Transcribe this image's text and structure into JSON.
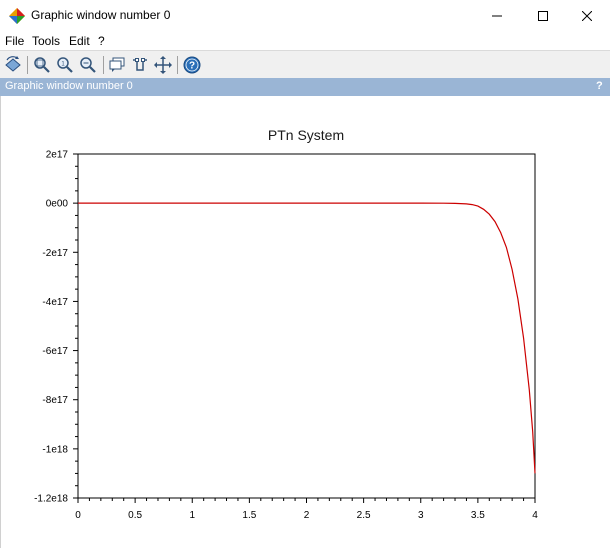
{
  "window": {
    "title": "Graphic window number 0"
  },
  "menu": {
    "items": [
      "File",
      "Tools",
      "Edit",
      "?"
    ]
  },
  "toolbar": {
    "buttons": [
      "rotate-icon",
      "zoom-icon",
      "zoom-100-icon",
      "zoom-area-icon",
      "datatip-icon",
      "datatip-edit-icon",
      "pan-icon",
      "help-icon"
    ]
  },
  "infobar": {
    "label": "Graphic window number 0",
    "help": "?"
  },
  "colors": {
    "curve": "#cc0000",
    "infobar": "#9ab5d5"
  },
  "chart_data": {
    "type": "line",
    "title": "PTn System",
    "xlabel": "",
    "ylabel": "",
    "xlim": [
      0,
      4
    ],
    "ylim": [
      -1.2e+18,
      2e+17
    ],
    "x_ticks": [
      0,
      0.5,
      1,
      1.5,
      2,
      2.5,
      3,
      3.5,
      4
    ],
    "x_tick_labels": [
      "0",
      "0.5",
      "1",
      "1.5",
      "2",
      "2.5",
      "3",
      "3.5",
      "4"
    ],
    "y_ticks": [
      2e+17,
      0,
      -2e+17,
      -4e+17,
      -6e+17,
      -8e+17,
      -1e+18,
      -1.2e+18
    ],
    "y_tick_labels": [
      "2e17",
      "0e00",
      "-2e17",
      "-4e17",
      "-6e17",
      "-8e17",
      "-1e18",
      "-1.2e18"
    ],
    "grid": false,
    "series": [
      {
        "color": "#cc0000",
        "x": [
          0,
          0.5,
          1,
          1.5,
          2,
          2.5,
          3,
          3.2,
          3.3,
          3.4,
          3.45,
          3.5,
          3.55,
          3.6,
          3.65,
          3.7,
          3.75,
          3.8,
          3.85,
          3.9,
          3.95,
          3.98,
          4.0
        ],
        "y": [
          0,
          0,
          0,
          0,
          0,
          0,
          0,
          -100000000000000.0,
          -1000000000000000.0,
          -3000000000000000.0,
          -6000000000000000.0,
          -1.2e+16,
          -2.5e+16,
          -4.5e+16,
          -7.5e+16,
          -1.2e+17,
          -1.8e+17,
          -2.7e+17,
          -3.9e+17,
          -5.5e+17,
          -7.6e+17,
          -9.3e+17,
          -1.1e+18
        ]
      }
    ]
  }
}
